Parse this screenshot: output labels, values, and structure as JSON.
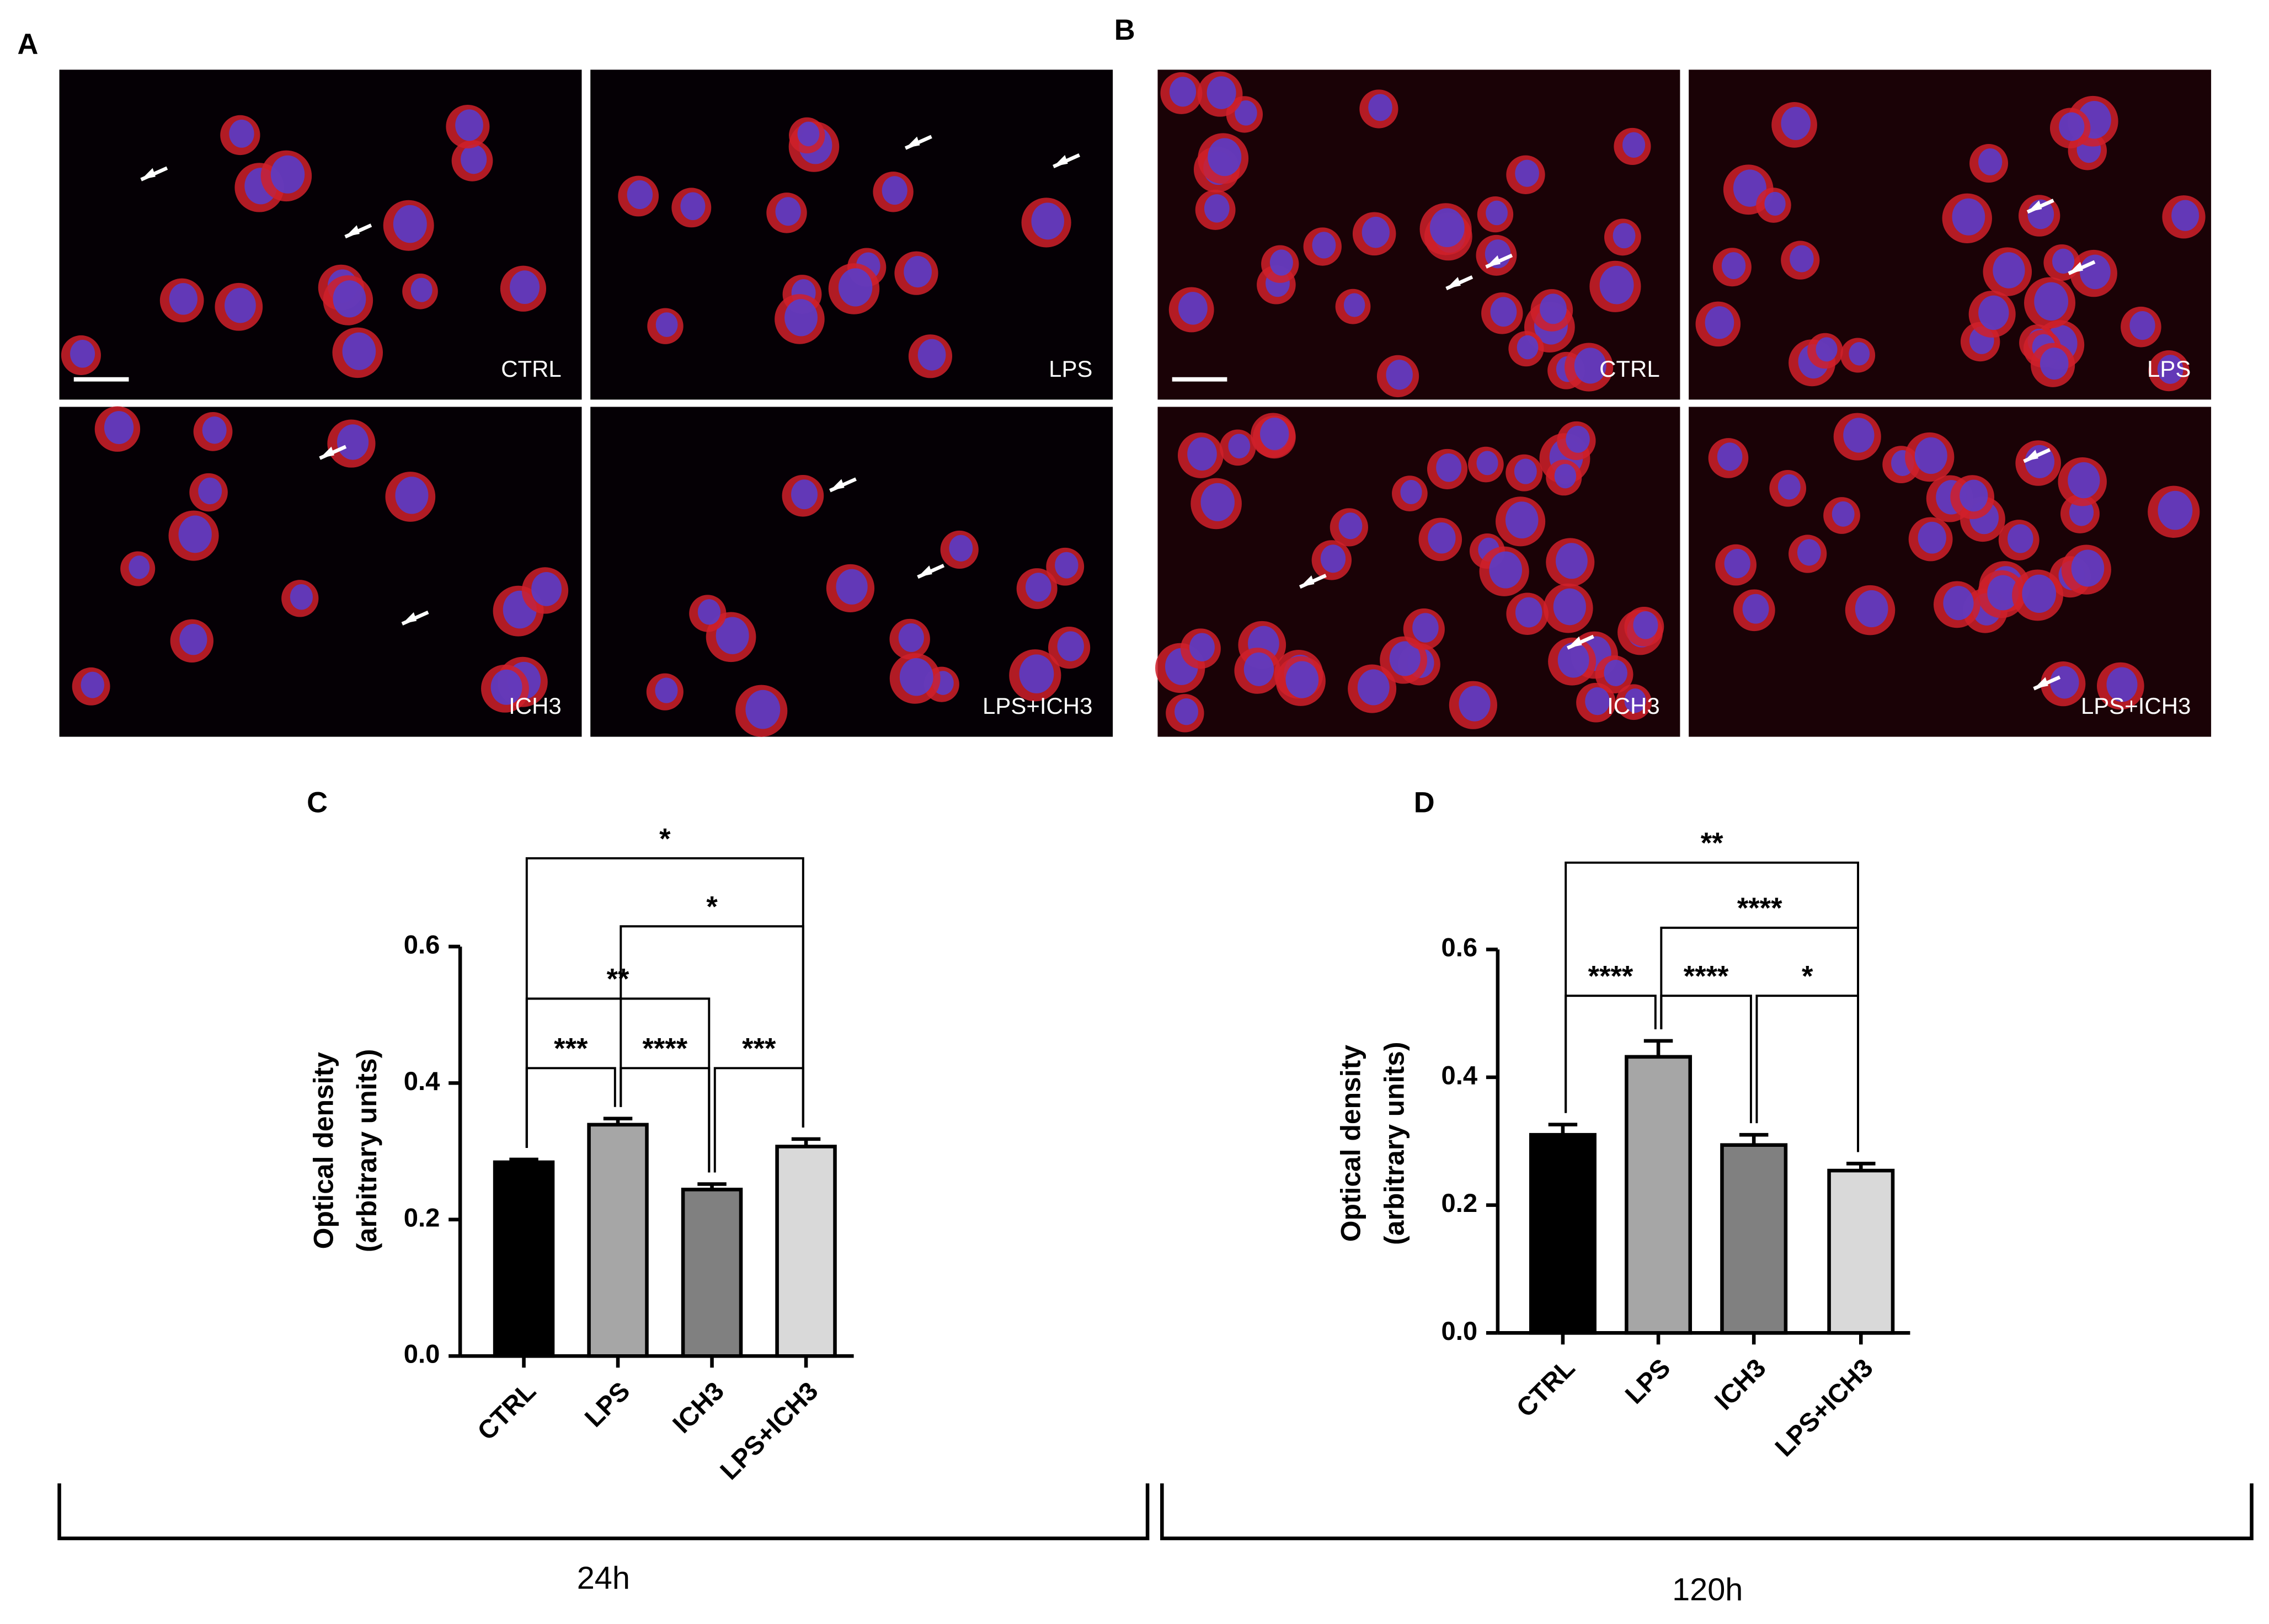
{
  "panel_labels": [
    "A",
    "B",
    "C",
    "D"
  ],
  "micrographs": [
    {
      "label": "CTRL"
    },
    {
      "label": "LPS"
    },
    {
      "label": "ICH3"
    },
    {
      "label": "LPS+ICH3"
    },
    {
      "label": "CTRL"
    },
    {
      "label": "LPS"
    },
    {
      "label": "ICH3"
    },
    {
      "label": "LPS+ICH3"
    }
  ],
  "timepoints": [
    "24h",
    "120h"
  ],
  "chart_data": [
    {
      "type": "bar",
      "y_label": [
        "Optical density",
        "(arbitrary units)"
      ],
      "categories": [
        "CTRL",
        "LPS",
        "ICH3",
        "LPS+ICH3"
      ],
      "values": [
        0.284,
        0.339,
        0.244,
        0.307
      ],
      "errors": [
        0.004,
        0.009,
        0.008,
        0.011
      ],
      "colors": [
        "#000000",
        "#a6a6a6",
        "#808080",
        "#d9d9d9"
      ],
      "ylim": [
        0,
        0.6
      ],
      "yticks": [
        {
          "value": 0,
          "label": "0.0"
        },
        0.2,
        0.4,
        0.6
      ],
      "comparisons": [
        {
          "from": 0,
          "to": 1,
          "label": "***"
        },
        {
          "from": 1,
          "to": 2,
          "label": "****"
        },
        {
          "from": 2,
          "to": 3,
          "label": "***"
        },
        {
          "from": 0,
          "to": 2,
          "label": "**"
        },
        {
          "from": 1,
          "to": 3,
          "label": "*"
        },
        {
          "from": 0,
          "to": 3,
          "label": "*"
        }
      ]
    },
    {
      "type": "bar",
      "y_label": [
        "Optical density",
        "(arbitrary units)"
      ],
      "categories": [
        "CTRL",
        "LPS",
        "ICH3",
        "LPS+ICH3"
      ],
      "values": [
        0.31,
        0.432,
        0.294,
        0.254
      ],
      "errors": [
        0.016,
        0.025,
        0.016,
        0.011
      ],
      "colors": [
        "#000000",
        "#a6a6a6",
        "#808080",
        "#d9d9d9"
      ],
      "ylim": [
        0,
        0.6
      ],
      "yticks": [
        {
          "value": 0,
          "label": "0.0"
        },
        0.2,
        0.4,
        0.6
      ],
      "comparisons": [
        {
          "from": 0,
          "to": 1,
          "label": "****"
        },
        {
          "from": 1,
          "to": 2,
          "label": "****"
        },
        {
          "from": 2,
          "to": 3,
          "label": "*"
        },
        {
          "from": 1,
          "to": 3,
          "label": "****"
        },
        {
          "from": 0,
          "to": 3,
          "label": "**"
        }
      ]
    }
  ]
}
